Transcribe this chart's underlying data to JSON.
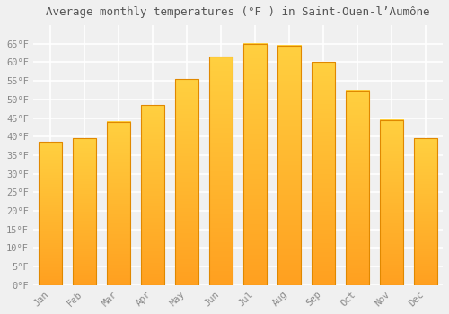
{
  "title": "Average monthly temperatures (°F ) in Saint-Ouen-l’Aumône",
  "months": [
    "Jan",
    "Feb",
    "Mar",
    "Apr",
    "May",
    "Jun",
    "Jul",
    "Aug",
    "Sep",
    "Oct",
    "Nov",
    "Dec"
  ],
  "values": [
    38.5,
    39.5,
    44,
    48.5,
    55.5,
    61.5,
    65,
    64.5,
    60,
    52.5,
    44.5,
    39.5
  ],
  "bar_color_top": "#FFD040",
  "bar_color_bottom": "#FFA020",
  "bar_edge_color": "#E08800",
  "background_color": "#F0F0F0",
  "plot_bg_color": "#F0F0F0",
  "grid_color": "#FFFFFF",
  "text_color": "#888888",
  "ylim": [
    0,
    70
  ],
  "yticks": [
    0,
    5,
    10,
    15,
    20,
    25,
    30,
    35,
    40,
    45,
    50,
    55,
    60,
    65
  ],
  "ylabel_suffix": "°F",
  "title_fontsize": 9,
  "tick_fontsize": 7.5,
  "font_family": "monospace"
}
